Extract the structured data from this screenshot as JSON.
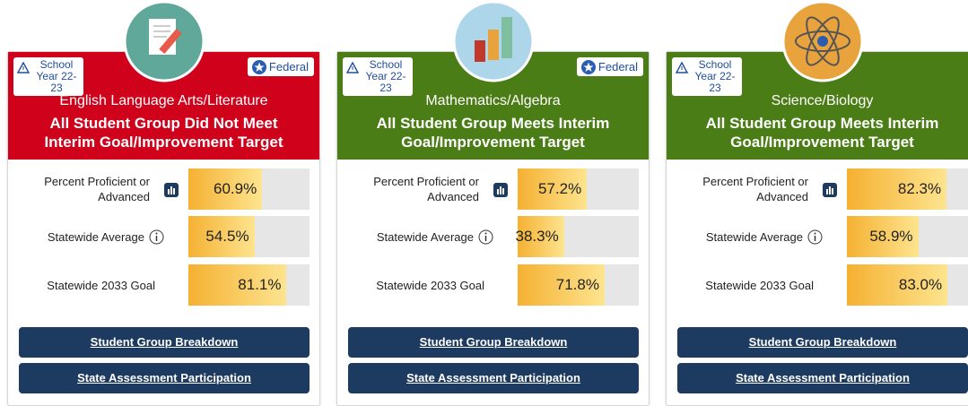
{
  "xlim": [
    0,
    100
  ],
  "cards": [
    {
      "status_color": "#d0021b",
      "school_badge": [
        "School",
        "Year 22-23"
      ],
      "federal_badge": "Federal",
      "subject": "English Language Arts/Literature",
      "status": "All Student Group Did Not Meet Interim Goal/Improvement Target",
      "metrics": [
        {
          "label": "Percent Proficient or Advanced",
          "value": 60.9,
          "value_label": "60.9%"
        },
        {
          "label": "Statewide Average",
          "value": 54.5,
          "value_label": "54.5%"
        },
        {
          "label": "Statewide 2033 Goal",
          "value": 81.1,
          "value_label": "81.1%"
        }
      ],
      "buttons": [
        "Student Group Breakdown",
        "State Assessment Participation"
      ]
    },
    {
      "status_color": "#4b7d16",
      "school_badge": [
        "School",
        "Year 22-23"
      ],
      "federal_badge": "Federal",
      "subject": "Mathematics/Algebra",
      "status": "All Student Group Meets Interim Goal/Improvement Target",
      "metrics": [
        {
          "label": "Percent Proficient or Advanced",
          "value": 57.2,
          "value_label": "57.2%"
        },
        {
          "label": "Statewide Average",
          "value": 38.3,
          "value_label": "38.3%"
        },
        {
          "label": "Statewide 2033 Goal",
          "value": 71.8,
          "value_label": "71.8%"
        }
      ],
      "buttons": [
        "Student Group Breakdown",
        "State Assessment Participation"
      ]
    },
    {
      "status_color": "#4b7d16",
      "school_badge": [
        "School",
        "Year 22-23"
      ],
      "subject": "Science/Biology",
      "status": "All Student Group Meets Interim Goal/Improvement Target",
      "metrics": [
        {
          "label": "Percent Proficient or Advanced",
          "value": 82.3,
          "value_label": "82.3%"
        },
        {
          "label": "Statewide Average",
          "value": 58.9,
          "value_label": "58.9%"
        },
        {
          "label": "Statewide 2033 Goal",
          "value": 83.0,
          "value_label": "83.0%"
        }
      ],
      "buttons": [
        "Student Group Breakdown",
        "State Assessment Participation"
      ]
    }
  ]
}
